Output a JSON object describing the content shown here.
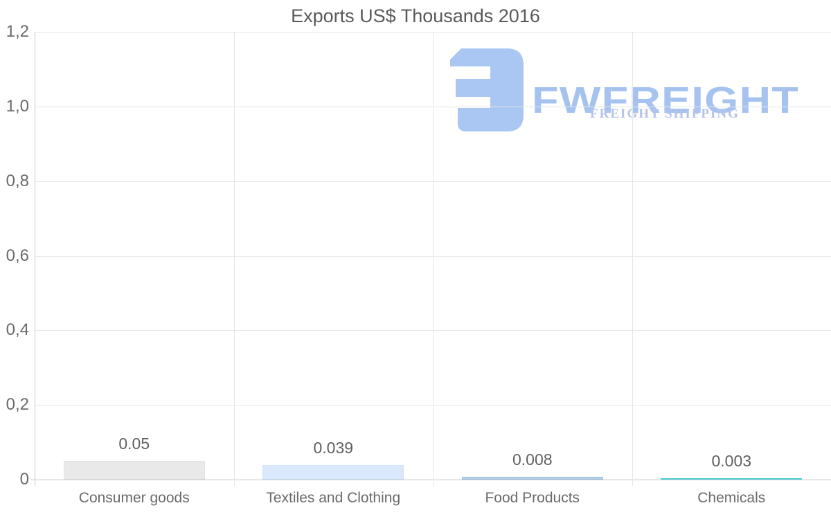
{
  "title": "Exports US$ Thousands 2016",
  "watermark": {
    "brand": "FWFREIGHT",
    "tagline": "FREIGHT SHIPPING",
    "brand_color": "#a6c3f0",
    "tagline_color": "#b5c3e8",
    "mark_color": "#aac6f3"
  },
  "chart_data": {
    "type": "bar",
    "title": "Exports US$ Thousands 2016",
    "categories": [
      "Consumer goods",
      "Textiles and Clothing",
      "Food Products",
      "Chemicals"
    ],
    "values": [
      0.05,
      0.039,
      0.008,
      0.003
    ],
    "value_labels": [
      "0.05",
      "0.039",
      "0.008",
      "0.003"
    ],
    "bar_colors": [
      "#e9e9e9",
      "#d9e8fc",
      "#b3d0ec",
      "#57d9de"
    ],
    "bar_borders": [
      "#e3e3e3",
      "#d2e3f9",
      "#9ec2e2",
      "#4fd3da"
    ],
    "xlabel": "",
    "ylabel": "",
    "ylim": [
      0,
      1.2
    ],
    "yticks": [
      {
        "value": 0,
        "label": "0"
      },
      {
        "value": 0.2,
        "label": "0,2"
      },
      {
        "value": 0.4,
        "label": "0,4"
      },
      {
        "value": 0.6,
        "label": "0,6"
      },
      {
        "value": 0.8,
        "label": "0,8"
      },
      {
        "value": 1.0,
        "label": "1,0"
      },
      {
        "value": 1.2,
        "label": "1,2"
      }
    ],
    "grid": true,
    "legend": false,
    "decimal_separator_axis": ","
  },
  "colors": {
    "title": "#59595b",
    "axis_labels": "#6a6a6a",
    "value_labels": "#606062",
    "gridline": "#e7e7e7",
    "axis_line": "#c6c6c6",
    "background": "#ffffff"
  }
}
